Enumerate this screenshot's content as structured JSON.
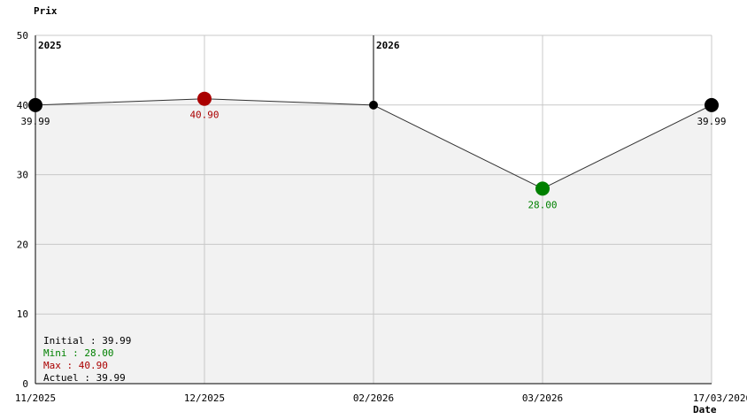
{
  "chart_data": {
    "type": "line",
    "ylabel": "Prix",
    "xlabel": "Date",
    "ylim": [
      0,
      50
    ],
    "yticks": [
      0,
      10,
      20,
      30,
      40,
      50
    ],
    "grid": true,
    "x_labels": [
      "11/2025",
      "12/2025",
      "02/2026",
      "03/2026",
      "17/03/2026"
    ],
    "year_markers": [
      "2025",
      "2026"
    ],
    "series": [
      {
        "points": [
          {
            "x": "11/2025",
            "y": 39.99,
            "label": "39.99",
            "kind": "start"
          },
          {
            "x": "12/2025",
            "y": 40.9,
            "label": "40.90",
            "kind": "max"
          },
          {
            "x": "02/2026",
            "y": 39.99,
            "label": "",
            "kind": "normal"
          },
          {
            "x": "03/2026",
            "y": 28.0,
            "label": "28.00",
            "kind": "min"
          },
          {
            "x": "17/03/2026",
            "y": 39.99,
            "label": "39.99",
            "kind": "current"
          }
        ]
      }
    ],
    "colors": {
      "line": "#333333",
      "area": "#f2f2f2",
      "grid": "#c8c8c8",
      "normal": "#000000",
      "min": "#008000",
      "max": "#aa0000"
    },
    "stats": [
      {
        "text": "Initial : 39.99",
        "color": "#000000"
      },
      {
        "text": "Mini : 28.00",
        "color": "#008000"
      },
      {
        "text": "Max : 40.90",
        "color": "#aa0000"
      },
      {
        "text": "Actuel : 39.99",
        "color": "#000000"
      }
    ]
  }
}
